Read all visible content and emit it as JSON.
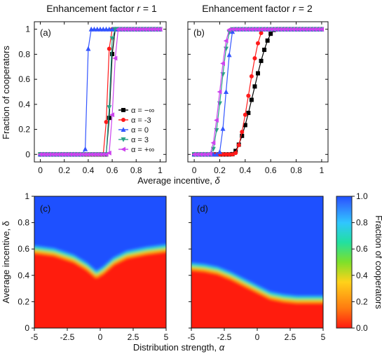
{
  "chart_data": [
    {
      "panel": "(a)",
      "type": "line",
      "title_prefix": "Enhancement factor ",
      "title_var": "r",
      "title_suffix": " = 1",
      "xlabel": "",
      "ylabel": "Fraction of cooperators",
      "xlim": [
        -0.05,
        1.05
      ],
      "ylim": [
        -0.06,
        1.06
      ],
      "xticks": [
        "0",
        "0.2",
        "0.4",
        "0.6",
        "0.8",
        "1"
      ],
      "xtick_values": [
        0,
        0.2,
        0.4,
        0.6,
        0.8,
        1
      ],
      "yticks": [
        "0",
        "0.2",
        "0.4",
        "0.6",
        "0.8",
        "1"
      ],
      "ytick_values": [
        0,
        0.2,
        0.4,
        0.6,
        0.8,
        1
      ],
      "legend_position": "right-middle",
      "series": [
        {
          "name": "α = −∞",
          "color": "#000000",
          "marker": "square",
          "transition": {
            "start": 0.55,
            "end": 0.62
          }
        },
        {
          "name": "α = -3",
          "color": "#ff1a1a",
          "marker": "circle",
          "transition": {
            "start": 0.53,
            "end": 0.59
          }
        },
        {
          "name": "α = 0",
          "color": "#3355ff",
          "marker": "triangle-up",
          "transition": {
            "start": 0.37,
            "end": 0.41
          }
        },
        {
          "name": "α = 3",
          "color": "#2aa388",
          "marker": "triangle-down",
          "transition": {
            "start": 0.55,
            "end": 0.61
          }
        },
        {
          "name": "α = +∞",
          "color": "#cc44ee",
          "marker": "triangle-left",
          "transition": {
            "start": 0.57,
            "end": 0.65
          }
        }
      ]
    },
    {
      "panel": "(b)",
      "type": "line",
      "title_prefix": "Enhancement factor ",
      "title_var": "r",
      "title_suffix": " = 2",
      "xlabel": "",
      "ylabel": "",
      "xlim": [
        -0.05,
        1.05
      ],
      "ylim": [
        -0.06,
        1.06
      ],
      "xticks": [
        "0",
        "0.2",
        "0.4",
        "0.6",
        "0.8",
        "1"
      ],
      "xtick_values": [
        0,
        0.2,
        0.4,
        0.6,
        0.8,
        1
      ],
      "series": [
        {
          "name": "α = −∞",
          "color": "#000000",
          "marker": "square",
          "transition": {
            "start": 0.29,
            "end": 0.64
          }
        },
        {
          "name": "α = -3",
          "color": "#ff1a1a",
          "marker": "circle",
          "transition": {
            "start": 0.31,
            "end": 0.55
          }
        },
        {
          "name": "α = 0",
          "color": "#3355ff",
          "marker": "triangle-up",
          "transition": {
            "start": 0.19,
            "end": 0.31
          }
        },
        {
          "name": "α = 3",
          "color": "#2aa388",
          "marker": "triangle-down",
          "transition": {
            "start": 0.13,
            "end": 0.29
          }
        },
        {
          "name": "α = +∞",
          "color": "#cc44ee",
          "marker": "triangle-left",
          "transition": {
            "start": 0.12,
            "end": 0.28
          }
        }
      ]
    },
    {
      "panel": "(c)",
      "type": "heatmap",
      "xlabel": "",
      "ylabel": "Average incentive, δ",
      "xlim": [
        -5,
        5
      ],
      "ylim": [
        0,
        1
      ],
      "yticks": [
        "0",
        "0.2",
        "0.4",
        "0.6",
        "0.8",
        "1"
      ],
      "ytick_values": [
        0,
        0.2,
        0.4,
        0.6,
        0.8,
        1
      ],
      "xticks": [
        "-5",
        "-2.5",
        "0",
        "2.5",
        "5"
      ],
      "xtick_values": [
        -5,
        -2.5,
        0,
        2.5,
        5
      ],
      "boundary": {
        "alpha": [
          -5,
          -3.5,
          -2,
          -1,
          -0.3,
          0.2,
          1,
          2,
          3.5,
          5
        ],
        "delta": [
          0.58,
          0.56,
          0.51,
          0.45,
          0.39,
          0.42,
          0.49,
          0.54,
          0.57,
          0.59
        ]
      }
    },
    {
      "panel": "(d)",
      "type": "heatmap",
      "xlabel": "",
      "ylabel": "",
      "xlim": [
        -5,
        5
      ],
      "ylim": [
        0,
        1
      ],
      "xticks": [
        "-5",
        "-2.5",
        "0",
        "2.5",
        "5"
      ],
      "xtick_values": [
        -5,
        -2.5,
        0,
        2.5,
        5
      ],
      "boundary": {
        "alpha": [
          -5,
          -4,
          -3,
          -2,
          -1,
          0,
          1,
          2,
          3,
          4,
          5
        ],
        "delta": [
          0.45,
          0.44,
          0.42,
          0.38,
          0.33,
          0.28,
          0.23,
          0.21,
          0.2,
          0.2,
          0.2
        ]
      }
    }
  ],
  "shared": {
    "top_xlabel_prefix": "Average incentive, ",
    "top_xlabel_var": "δ",
    "bottom_xlabel_prefix": "Distribution strength, ",
    "bottom_xlabel_var": "α",
    "colorbar": {
      "label": "Fraction of cooperators",
      "ticks": [
        "0.0",
        "0.2",
        "0.4",
        "0.6",
        "0.8",
        "1.0"
      ],
      "tick_values": [
        0,
        0.2,
        0.4,
        0.6,
        0.8,
        1
      ],
      "colors": [
        "#ff1a10",
        "#ff7a10",
        "#ffd21a",
        "#7ee02a",
        "#22e0a0",
        "#30c6ff",
        "#2f6cff",
        "#1e50ff"
      ]
    }
  }
}
